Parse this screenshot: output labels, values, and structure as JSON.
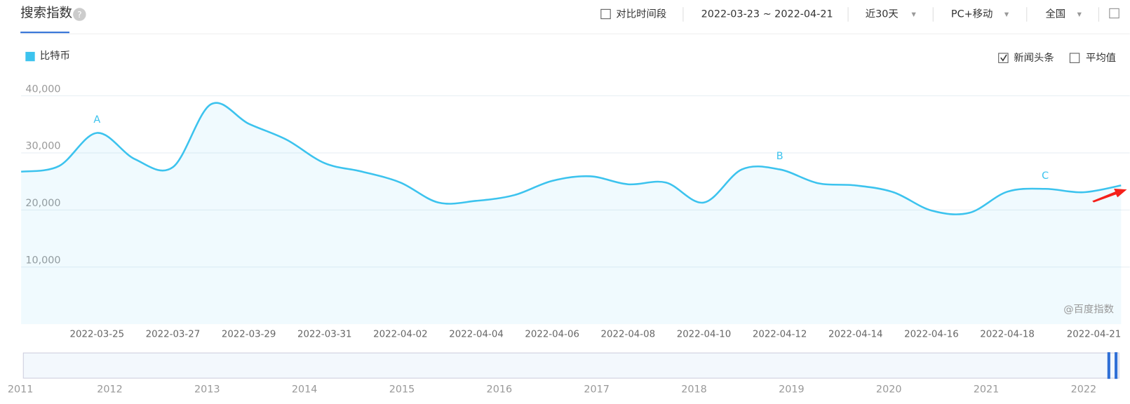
{
  "header": {
    "title": "搜索指数",
    "compare": "对比时间段",
    "date_range": "2022-03-23 ~ 2022-04-21",
    "period": "近30天",
    "device": "PC+移动",
    "region": "全国"
  },
  "options": {
    "news": "新闻头条",
    "news_checked": true,
    "average": "平均值",
    "average_checked": false
  },
  "watermark": "@百度指数",
  "chart_data": {
    "type": "line",
    "smooth": true,
    "area": true,
    "categories": [
      null,
      null,
      "2022-03-25",
      null,
      "2022-03-27",
      null,
      "2022-03-29",
      null,
      "2022-03-31",
      null,
      "2022-04-02",
      null,
      "2022-04-04",
      null,
      "2022-04-06",
      null,
      "2022-04-08",
      null,
      "2022-04-10",
      null,
      "2022-04-12",
      null,
      "2022-04-14",
      null,
      "2022-04-16",
      null,
      "2022-04-18",
      null,
      null,
      "2022-04-21"
    ],
    "series": [
      {
        "name": "比特币",
        "color": "#3cc3ee",
        "values": [
          26700,
          27700,
          33500,
          28900,
          27500,
          38500,
          35100,
          32300,
          28200,
          26700,
          24800,
          21300,
          21600,
          22600,
          25100,
          25900,
          24500,
          24800,
          21300,
          27100,
          27100,
          24700,
          24300,
          23100,
          19900,
          19500,
          23200,
          23700,
          23100,
          24300
        ],
        "point_labels": [
          null,
          null,
          "A",
          null,
          null,
          null,
          null,
          null,
          null,
          null,
          null,
          null,
          null,
          null,
          null,
          null,
          null,
          null,
          null,
          null,
          "B",
          null,
          null,
          null,
          null,
          null,
          null,
          "C",
          null,
          null
        ]
      }
    ],
    "ylim": [
      0,
      40000
    ],
    "yticks": [
      {
        "value": 10000,
        "label": "10,000"
      },
      {
        "value": 20000,
        "label": "20,000"
      },
      {
        "value": 30000,
        "label": "30,000"
      },
      {
        "value": 40000,
        "label": "40,000"
      }
    ],
    "grid": true,
    "navigator": {
      "years": [
        "2011",
        "2012",
        "2013",
        "2014",
        "2015",
        "2016",
        "2017",
        "2018",
        "2019",
        "2020",
        "2021",
        "2022"
      ]
    }
  }
}
